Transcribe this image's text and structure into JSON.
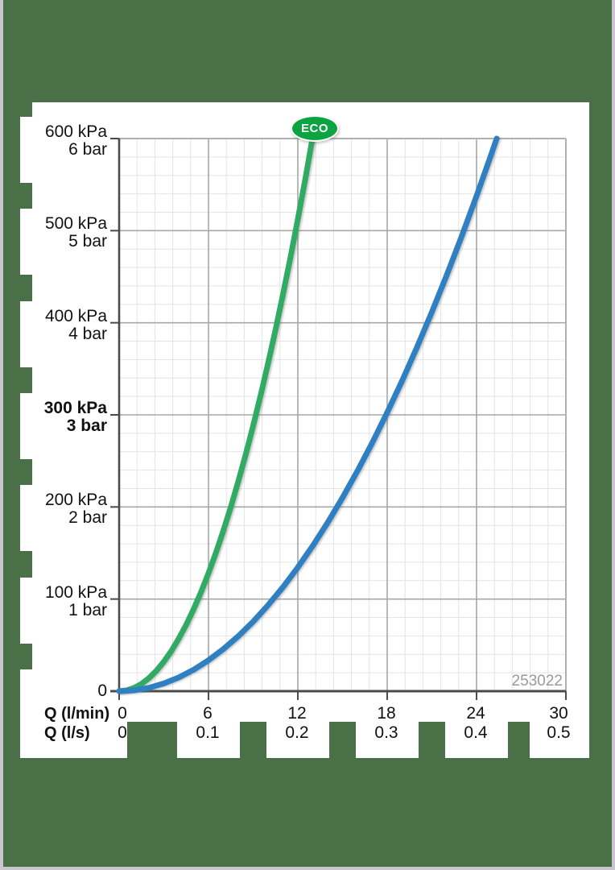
{
  "page": {
    "background_color": "#497047",
    "edge_strip_color": "#cac6cf"
  },
  "badge": {
    "label": "ECO",
    "background_color": "#0ca442",
    "text_color": "#ffffff"
  },
  "chart_data": {
    "type": "line",
    "title": "",
    "watermark": "253022",
    "x_axis": {
      "row1_label": "Q (l/min)",
      "row2_label": "Q (l/s)",
      "range_lmin": [
        0,
        30
      ],
      "ticks": [
        {
          "q": 0,
          "lmin": "0",
          "ls": "0"
        },
        {
          "q": 6,
          "lmin": "6",
          "ls": "0.1"
        },
        {
          "q": 12,
          "lmin": "12",
          "ls": "0.2"
        },
        {
          "q": 18,
          "lmin": "18",
          "ls": "0.3"
        },
        {
          "q": 24,
          "lmin": "24",
          "ls": "0.4"
        },
        {
          "q": 30,
          "lmin": "30",
          "ls": "0.5"
        }
      ]
    },
    "y_axis": {
      "zero_label": "0",
      "range_kpa": [
        0,
        600
      ],
      "ticks": [
        {
          "kpa": 600,
          "kpa_label": "600 kPa",
          "bar_label": "6 bar",
          "bold": false
        },
        {
          "kpa": 500,
          "kpa_label": "500 kPa",
          "bar_label": "5 bar",
          "bold": false
        },
        {
          "kpa": 400,
          "kpa_label": "400 kPa",
          "bar_label": "4 bar",
          "bold": false
        },
        {
          "kpa": 300,
          "kpa_label": "300 kPa",
          "bar_label": "3 bar",
          "bold": true
        },
        {
          "kpa": 200,
          "kpa_label": "200 kPa",
          "bar_label": "2 bar",
          "bold": false
        },
        {
          "kpa": 100,
          "kpa_label": "100 kPa",
          "bar_label": "1 bar",
          "bold": false
        }
      ]
    },
    "grid": {
      "minor_step_lmin": 1.2,
      "minor_step_kpa": 20,
      "major_step_lmin": 6,
      "major_step_kpa": 100,
      "minor_color": "#e4e4e4",
      "major_color": "#a7a7a7",
      "frame_color": "#b0b0b0",
      "axis_color": "#4b4b4b"
    },
    "series": [
      {
        "name": "eco-curve",
        "badge": "ECO",
        "color": "#31ab63",
        "points_lmin_kpa": [
          [
            0,
            0
          ],
          [
            0.5,
            0.9
          ],
          [
            1,
            3.6
          ],
          [
            1.5,
            8.0
          ],
          [
            2,
            14.2
          ],
          [
            2.5,
            22.2
          ],
          [
            3,
            32.0
          ],
          [
            3.5,
            43.6
          ],
          [
            4,
            57.0
          ],
          [
            4.5,
            72.1
          ],
          [
            5,
            89.0
          ],
          [
            5.5,
            107.7
          ],
          [
            6,
            128.2
          ],
          [
            6.5,
            150.4
          ],
          [
            7,
            174.4
          ],
          [
            7.5,
            200.2
          ],
          [
            8,
            227.8
          ],
          [
            8.5,
            257.2
          ],
          [
            9,
            288.3
          ],
          [
            9.5,
            321.3
          ],
          [
            10,
            356.0
          ],
          [
            10.5,
            392.5
          ],
          [
            11,
            430.7
          ],
          [
            11.5,
            470.8
          ],
          [
            12,
            512.6
          ],
          [
            12.5,
            556.2
          ],
          [
            12.98,
            600
          ]
        ]
      },
      {
        "name": "standard-curve",
        "badge": "",
        "color": "#2f80c3",
        "points_lmin_kpa": [
          [
            0,
            0
          ],
          [
            1,
            0.9
          ],
          [
            2,
            3.7
          ],
          [
            3,
            8.4
          ],
          [
            4,
            14.9
          ],
          [
            5,
            23.3
          ],
          [
            6,
            33.6
          ],
          [
            7,
            45.7
          ],
          [
            8,
            59.7
          ],
          [
            9,
            75.6
          ],
          [
            10,
            93.4
          ],
          [
            11,
            112.9
          ],
          [
            12,
            134.4
          ],
          [
            13,
            157.8
          ],
          [
            14,
            183.0
          ],
          [
            15,
            210.1
          ],
          [
            16,
            239.0
          ],
          [
            17,
            269.8
          ],
          [
            18,
            302.5
          ],
          [
            19,
            337.0
          ],
          [
            20,
            373.4
          ],
          [
            21,
            411.7
          ],
          [
            22,
            451.8
          ],
          [
            23,
            493.8
          ],
          [
            24,
            537.7
          ],
          [
            25,
            583.4
          ],
          [
            25.35,
            600
          ]
        ]
      }
    ]
  }
}
